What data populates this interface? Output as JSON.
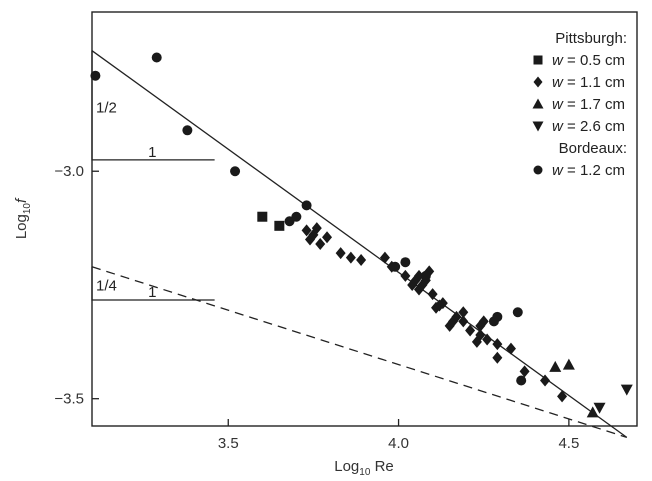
{
  "chart_data": {
    "type": "scatter",
    "title": "",
    "xlabel": {
      "prefix": "Log",
      "sub": "10",
      "suffix": " Re"
    },
    "ylabel": {
      "prefix": "Log",
      "sub": "10",
      "var": "f"
    },
    "xlim": [
      3.1,
      4.7
    ],
    "ylim": [
      -3.56,
      -2.65
    ],
    "log_scale": false,
    "grid": false,
    "xticks": [
      {
        "value": 3.5,
        "label": "3.5"
      },
      {
        "value": 4.0,
        "label": "4.0"
      },
      {
        "value": 4.5,
        "label": "4.5"
      }
    ],
    "yticks": [
      {
        "value": -3.0,
        "label": "−3.0"
      },
      {
        "value": -3.5,
        "label": "−3.5"
      }
    ],
    "legend": {
      "placement": "top-right",
      "groups": [
        {
          "title": "Pittsburgh:",
          "entries": [
            {
              "marker": "square",
              "var": "w",
              "text": " = 0.5 cm"
            },
            {
              "marker": "diamond",
              "var": "w",
              "text": " = 1.1 cm"
            },
            {
              "marker": "triangle-up",
              "var": "w",
              "text": " = 1.7 cm"
            },
            {
              "marker": "triangle-down",
              "var": "w",
              "text": " = 2.6 cm"
            }
          ]
        },
        {
          "title": "Bordeaux:",
          "entries": [
            {
              "marker": "circle",
              "var": "w",
              "text": " = 1.2 cm"
            }
          ]
        }
      ]
    },
    "lines": [
      {
        "style": "solid",
        "x": [
          3.1,
          4.67
        ],
        "y": [
          -2.735,
          -3.585
        ]
      },
      {
        "style": "dashed",
        "x": [
          3.1,
          4.67
        ],
        "y": [
          -3.21,
          -3.585
        ]
      }
    ],
    "slope_triangles": [
      {
        "style": "solid",
        "x0": 3.1,
        "x1": 3.46,
        "y_bottom": -2.975,
        "y_top": -2.735,
        "vertical_label": "1/2",
        "horizontal_label": "1"
      },
      {
        "style": "solid",
        "x0": 3.1,
        "x1": 3.46,
        "y_bottom": -3.283,
        "y_top": -3.21,
        "vertical_label": "1/4",
        "horizontal_label": "1"
      }
    ],
    "series": [
      {
        "marker": "square",
        "points": [
          [
            3.6,
            -3.1
          ],
          [
            3.65,
            -3.12
          ]
        ]
      },
      {
        "marker": "diamond",
        "points": [
          [
            3.73,
            -3.13
          ],
          [
            3.74,
            -3.15
          ],
          [
            3.75,
            -3.14
          ],
          [
            3.76,
            -3.125
          ],
          [
            3.77,
            -3.16
          ],
          [
            3.79,
            -3.145
          ],
          [
            3.83,
            -3.18
          ],
          [
            3.86,
            -3.19
          ],
          [
            3.89,
            -3.195
          ],
          [
            3.96,
            -3.19
          ],
          [
            3.98,
            -3.21
          ],
          [
            4.02,
            -3.23
          ],
          [
            4.04,
            -3.25
          ],
          [
            4.05,
            -3.24
          ],
          [
            4.06,
            -3.23
          ],
          [
            4.06,
            -3.26
          ],
          [
            4.07,
            -3.25
          ],
          [
            4.08,
            -3.24
          ],
          [
            4.09,
            -3.22
          ],
          [
            4.1,
            -3.27
          ],
          [
            4.11,
            -3.3
          ],
          [
            4.12,
            -3.295
          ],
          [
            4.13,
            -3.29
          ],
          [
            4.15,
            -3.34
          ],
          [
            4.16,
            -3.33
          ],
          [
            4.17,
            -3.32
          ],
          [
            4.19,
            -3.31
          ],
          [
            4.19,
            -3.33
          ],
          [
            4.21,
            -3.35
          ],
          [
            4.23,
            -3.375
          ],
          [
            4.24,
            -3.36
          ],
          [
            4.24,
            -3.34
          ],
          [
            4.25,
            -3.33
          ],
          [
            4.26,
            -3.37
          ],
          [
            4.29,
            -3.38
          ],
          [
            4.29,
            -3.41
          ],
          [
            4.33,
            -3.39
          ],
          [
            4.37,
            -3.44
          ],
          [
            4.43,
            -3.46
          ],
          [
            4.48,
            -3.495
          ]
        ]
      },
      {
        "marker": "triangle-up",
        "points": [
          [
            4.46,
            -3.43
          ],
          [
            4.5,
            -3.425
          ],
          [
            4.57,
            -3.53
          ]
        ]
      },
      {
        "marker": "triangle-down",
        "points": [
          [
            4.59,
            -3.52
          ],
          [
            4.67,
            -3.48
          ]
        ]
      },
      {
        "marker": "circle",
        "points": [
          [
            3.11,
            -2.79
          ],
          [
            3.29,
            -2.75
          ],
          [
            3.38,
            -2.91
          ],
          [
            3.52,
            -3.0
          ],
          [
            3.68,
            -3.11
          ],
          [
            3.7,
            -3.1
          ],
          [
            3.73,
            -3.075
          ],
          [
            3.99,
            -3.21
          ],
          [
            4.02,
            -3.2
          ],
          [
            4.08,
            -3.23
          ],
          [
            4.28,
            -3.33
          ],
          [
            4.29,
            -3.32
          ],
          [
            4.35,
            -3.31
          ],
          [
            4.36,
            -3.46
          ]
        ]
      }
    ]
  }
}
